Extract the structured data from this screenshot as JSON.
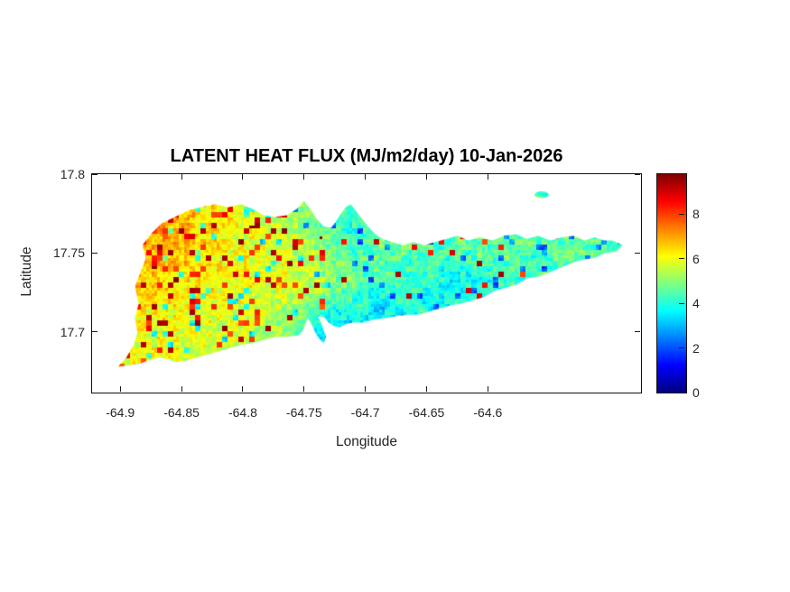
{
  "title": "LATENT HEAT FLUX (MJ/m2/day) 10-Jan-2026",
  "axes": {
    "xlabel": "Longitude",
    "ylabel": "Latitude",
    "x_tick_labels": [
      "-64.9",
      "-64.85",
      "-64.8",
      "-64.75",
      "-64.7",
      "-64.65",
      "-64.6"
    ],
    "y_tick_labels": [
      "17.8",
      "17.75",
      "17.7"
    ],
    "xlim": [
      -64.923,
      -64.475
    ],
    "ylim": [
      17.6617,
      17.8
    ]
  },
  "colorbar": {
    "tick_labels": [
      "0",
      "2",
      "4",
      "6",
      "8"
    ],
    "vmin": 0,
    "vmax": 9.8
  },
  "chart_data": {
    "type": "heatmap",
    "title": "LATENT HEAT FLUX (MJ/m2/day) 10-Jan-2026",
    "units": "MJ/m2/day",
    "date": "10-Jan-2026",
    "xlabel": "Longitude",
    "ylabel": "Latitude",
    "xlim": [
      -64.923,
      -64.475
    ],
    "ylim": [
      17.6617,
      17.8
    ],
    "vmin": 0,
    "vmax": 9.8,
    "colormap": {
      "name": "jet",
      "stops": [
        [
          0,
          "#000080"
        ],
        [
          0.125,
          "#0000ff"
        ],
        [
          0.375,
          "#00ffff"
        ],
        [
          0.625,
          "#ffff00"
        ],
        [
          0.875,
          "#ff0000"
        ],
        [
          1,
          "#800000"
        ]
      ]
    },
    "grid": {
      "lon0": -64.905,
      "dlon": 0.02,
      "ncols": 22,
      "lat0": 17.795,
      "dlat": 0.015625,
      "nrows": 9,
      "values": [
        [
          6.5,
          6.6,
          6.4,
          6.2,
          6.0,
          5.6,
          5.4,
          5.2,
          5.0,
          4.6,
          4.4,
          4.4,
          4.4,
          4.4,
          4.4,
          4.4,
          4.4,
          4.4,
          4.4,
          4.4,
          4.4,
          4.4
        ],
        [
          6.8,
          7.0,
          6.9,
          6.6,
          6.3,
          5.9,
          5.6,
          5.3,
          4.8,
          4.4,
          4.3,
          4.4,
          4.5,
          4.4,
          4.5,
          4.6,
          4.5,
          4.4,
          4.6,
          4.5,
          4.4,
          4.5
        ],
        [
          6.9,
          7.1,
          7.0,
          6.7,
          6.4,
          6.1,
          5.8,
          5.5,
          4.9,
          4.3,
          4.2,
          4.5,
          4.6,
          4.5,
          4.6,
          4.7,
          4.6,
          4.5,
          4.7,
          4.6,
          4.5,
          4.6
        ],
        [
          6.6,
          6.9,
          6.8,
          6.6,
          6.3,
          6.1,
          5.9,
          5.7,
          5.4,
          4.8,
          4.4,
          4.5,
          4.6,
          4.4,
          4.3,
          4.5,
          4.6,
          4.4,
          4.5,
          4.6,
          4.4,
          4.5
        ],
        [
          6.3,
          6.5,
          6.4,
          6.3,
          6.2,
          6.0,
          5.9,
          5.8,
          5.6,
          5.2,
          4.6,
          4.4,
          4.3,
          4.0,
          3.8,
          3.7,
          4.4,
          4.3,
          4.4,
          4.3,
          4.2,
          4.4
        ],
        [
          6.1,
          6.3,
          6.2,
          6.1,
          6.0,
          5.9,
          5.8,
          5.5,
          5.0,
          4.2,
          4.0,
          3.4,
          4.0,
          3.8,
          4.0,
          4.1,
          4.2,
          4.1,
          4.2,
          4.1,
          4.0,
          4.2
        ],
        [
          5.9,
          6.1,
          6.0,
          5.9,
          5.8,
          5.7,
          5.5,
          4.9,
          4.0,
          3.0,
          3.6,
          3.9,
          4.0,
          4.0,
          4.1,
          4.0,
          4.1,
          4.0,
          4.1,
          4.0,
          4.0,
          4.1
        ],
        [
          5.8,
          6.0,
          5.9,
          5.8,
          5.7,
          5.6,
          5.4,
          5.0,
          4.4,
          3.8,
          4.0,
          4.0,
          4.1,
          4.0,
          4.1,
          4.0,
          4.1,
          4.0,
          4.1,
          4.0,
          4.0,
          4.1
        ],
        [
          5.7,
          5.9,
          5.8,
          5.7,
          5.6,
          5.5,
          5.3,
          5.0,
          4.6,
          4.2,
          4.1,
          4.0,
          4.1,
          4.0,
          4.1,
          4.0,
          4.1,
          4.0,
          4.1,
          4.0,
          4.0,
          4.1
        ]
      ]
    },
    "speckle": {
      "spike_range": [
        7.7,
        9.7
      ],
      "cool_density": 0.05,
      "cool_delta": -2.1,
      "noise_amp": [
        0.55,
        0.45
      ],
      "density_grid": [
        [
          0.1,
          0.1,
          0.1,
          0.09,
          0.08,
          0.07,
          0.06,
          0.06,
          0.05,
          0.03,
          0.02,
          0.03,
          0.03,
          0.03,
          0.04,
          0.04,
          0.03,
          0.03,
          0.03,
          0.03,
          0.02,
          0.02
        ],
        [
          0.12,
          0.14,
          0.14,
          0.12,
          0.12,
          0.1,
          0.1,
          0.1,
          0.08,
          0.04,
          0.03,
          0.04,
          0.05,
          0.05,
          0.06,
          0.06,
          0.05,
          0.04,
          0.05,
          0.04,
          0.03,
          0.03
        ],
        [
          0.14,
          0.16,
          0.16,
          0.14,
          0.13,
          0.12,
          0.12,
          0.12,
          0.1,
          0.05,
          0.05,
          0.06,
          0.07,
          0.06,
          0.07,
          0.07,
          0.06,
          0.05,
          0.06,
          0.05,
          0.04,
          0.04
        ],
        [
          0.13,
          0.15,
          0.15,
          0.14,
          0.13,
          0.13,
          0.13,
          0.13,
          0.12,
          0.1,
          0.09,
          0.09,
          0.08,
          0.05,
          0.05,
          0.06,
          0.05,
          0.04,
          0.05,
          0.05,
          0.04,
          0.04
        ],
        [
          0.12,
          0.13,
          0.13,
          0.13,
          0.13,
          0.13,
          0.13,
          0.13,
          0.12,
          0.11,
          0.1,
          0.08,
          0.06,
          0.04,
          0.03,
          0.04,
          0.04,
          0.03,
          0.04,
          0.04,
          0.03,
          0.03
        ],
        [
          0.11,
          0.12,
          0.12,
          0.12,
          0.12,
          0.12,
          0.12,
          0.11,
          0.08,
          0.04,
          0.04,
          0.04,
          0.04,
          0.03,
          0.03,
          0.03,
          0.03,
          0.02,
          0.03,
          0.03,
          0.02,
          0.02
        ],
        [
          0.1,
          0.11,
          0.11,
          0.11,
          0.11,
          0.11,
          0.1,
          0.08,
          0.04,
          0.02,
          0.02,
          0.03,
          0.03,
          0.02,
          0.02,
          0.02,
          0.02,
          0.02,
          0.02,
          0.02,
          0.02,
          0.02
        ],
        [
          0.1,
          0.11,
          0.11,
          0.1,
          0.1,
          0.1,
          0.09,
          0.08,
          0.05,
          0.03,
          0.03,
          0.03,
          0.03,
          0.02,
          0.02,
          0.02,
          0.02,
          0.02,
          0.02,
          0.02,
          0.02,
          0.02
        ],
        [
          0.1,
          0.11,
          0.11,
          0.1,
          0.1,
          0.1,
          0.09,
          0.08,
          0.05,
          0.03,
          0.03,
          0.03,
          0.03,
          0.02,
          0.02,
          0.02,
          0.02,
          0.02,
          0.02,
          0.02,
          0.02,
          0.02
        ]
      ]
    },
    "island_outline": [
      [
        -64.902,
        17.678
      ],
      [
        -64.895,
        17.684
      ],
      [
        -64.889,
        17.692
      ],
      [
        -64.886,
        17.7
      ],
      [
        -64.888,
        17.709
      ],
      [
        -64.885,
        17.718
      ],
      [
        -64.888,
        17.729
      ],
      [
        -64.883,
        17.739
      ],
      [
        -64.879,
        17.747
      ],
      [
        -64.882,
        17.755
      ],
      [
        -64.874,
        17.763
      ],
      [
        -64.866,
        17.769
      ],
      [
        -64.855,
        17.773
      ],
      [
        -64.845,
        17.777
      ],
      [
        -64.835,
        17.779
      ],
      [
        -64.823,
        17.781
      ],
      [
        -64.812,
        17.779
      ],
      [
        -64.802,
        17.781
      ],
      [
        -64.792,
        17.778
      ],
      [
        -64.783,
        17.774
      ],
      [
        -64.773,
        17.773
      ],
      [
        -64.764,
        17.774
      ],
      [
        -64.756,
        17.778
      ],
      [
        -64.75,
        17.783
      ],
      [
        -64.745,
        17.778
      ],
      [
        -64.74,
        17.772
      ],
      [
        -64.734,
        17.767
      ],
      [
        -64.728,
        17.766
      ],
      [
        -64.724,
        17.77
      ],
      [
        -64.72,
        17.775
      ],
      [
        -64.716,
        17.779
      ],
      [
        -64.712,
        17.781
      ],
      [
        -64.709,
        17.778
      ],
      [
        -64.704,
        17.773
      ],
      [
        -64.698,
        17.767
      ],
      [
        -64.692,
        17.762
      ],
      [
        -64.686,
        17.759
      ],
      [
        -64.678,
        17.757
      ],
      [
        -64.669,
        17.755
      ],
      [
        -64.661,
        17.757
      ],
      [
        -64.652,
        17.755
      ],
      [
        -64.643,
        17.757
      ],
      [
        -64.634,
        17.759
      ],
      [
        -64.625,
        17.761
      ],
      [
        -64.616,
        17.758
      ],
      [
        -64.607,
        17.76
      ],
      [
        -64.596,
        17.758
      ],
      [
        -64.587,
        17.761
      ],
      [
        -64.577,
        17.762
      ],
      [
        -64.568,
        17.759
      ],
      [
        -64.559,
        17.761
      ],
      [
        -64.549,
        17.758
      ],
      [
        -64.54,
        17.76
      ],
      [
        -64.53,
        17.761
      ],
      [
        -64.521,
        17.758
      ],
      [
        -64.513,
        17.76
      ],
      [
        -64.505,
        17.758
      ],
      [
        -64.498,
        17.758
      ],
      [
        -64.49,
        17.755
      ],
      [
        -64.495,
        17.751
      ],
      [
        -64.504,
        17.75
      ],
      [
        -64.513,
        17.747
      ],
      [
        -64.521,
        17.746
      ],
      [
        -64.531,
        17.744
      ],
      [
        -64.54,
        17.741
      ],
      [
        -64.549,
        17.738
      ],
      [
        -64.559,
        17.735
      ],
      [
        -64.568,
        17.734
      ],
      [
        -64.577,
        17.73
      ],
      [
        -64.586,
        17.728
      ],
      [
        -64.595,
        17.726
      ],
      [
        -64.604,
        17.722
      ],
      [
        -64.613,
        17.72
      ],
      [
        -64.622,
        17.718
      ],
      [
        -64.63,
        17.717
      ],
      [
        -64.639,
        17.715
      ],
      [
        -64.648,
        17.713
      ],
      [
        -64.657,
        17.711
      ],
      [
        -64.666,
        17.711
      ],
      [
        -64.675,
        17.71
      ],
      [
        -64.683,
        17.709
      ],
      [
        -64.693,
        17.708
      ],
      [
        -64.702,
        17.706
      ],
      [
        -64.71,
        17.706
      ],
      [
        -64.716,
        17.705
      ],
      [
        -64.721,
        17.703
      ],
      [
        -64.726,
        17.704
      ],
      [
        -64.73,
        17.706
      ],
      [
        -64.733,
        17.709
      ],
      [
        -64.739,
        17.71
      ],
      [
        -64.736,
        17.706
      ],
      [
        -64.734,
        17.701
      ],
      [
        -64.732,
        17.697
      ],
      [
        -64.734,
        17.693
      ],
      [
        -64.738,
        17.696
      ],
      [
        -64.741,
        17.7
      ],
      [
        -64.744,
        17.705
      ],
      [
        -64.747,
        17.709
      ],
      [
        -64.749,
        17.705
      ],
      [
        -64.751,
        17.701
      ],
      [
        -64.754,
        17.698
      ],
      [
        -64.764,
        17.697
      ],
      [
        -64.773,
        17.697
      ],
      [
        -64.783,
        17.695
      ],
      [
        -64.792,
        17.693
      ],
      [
        -64.801,
        17.692
      ],
      [
        -64.81,
        17.69
      ],
      [
        -64.819,
        17.688
      ],
      [
        -64.828,
        17.686
      ],
      [
        -64.837,
        17.684
      ],
      [
        -64.846,
        17.682
      ],
      [
        -64.854,
        17.681
      ],
      [
        -64.862,
        17.683
      ],
      [
        -64.869,
        17.684
      ],
      [
        -64.877,
        17.682
      ],
      [
        -64.884,
        17.68
      ],
      [
        -64.893,
        17.679
      ]
    ],
    "cay": {
      "center": [
        -64.556,
        17.787
      ],
      "radius_lon": 0.006,
      "radius_lat": 0.0021
    }
  }
}
